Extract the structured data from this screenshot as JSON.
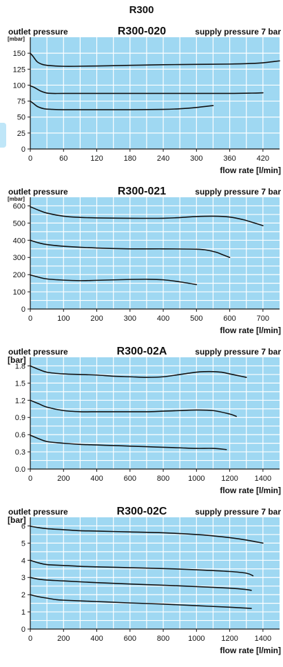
{
  "page": {
    "title": "R300"
  },
  "colors": {
    "plot_bg": "#9fd8f2",
    "grid": "#ffffff",
    "line": "#111111"
  },
  "chart_data": [
    {
      "type": "line",
      "title": "R300-020",
      "ylabel": "outlet pressure",
      "yunit": "[mbar]",
      "xlabel": "flow rate [l/min]",
      "note": "supply pressure 7 bar",
      "xlim": [
        0,
        450
      ],
      "ylim": [
        0,
        175
      ],
      "xticks": [
        0,
        60,
        120,
        180,
        240,
        300,
        360,
        420
      ],
      "yticks": [
        0,
        25,
        50,
        75,
        100,
        125,
        150
      ],
      "xgrid_step": 30,
      "ygrid_step": 25,
      "series": [
        {
          "x": [
            0,
            5,
            12,
            20,
            30,
            45,
            60,
            80,
            120,
            180,
            240,
            300,
            360,
            400,
            420,
            440,
            450
          ],
          "y": [
            150,
            145,
            137,
            133,
            131,
            130,
            129.5,
            129.5,
            130,
            131,
            132,
            132.5,
            133,
            134,
            135,
            137,
            138
          ]
        },
        {
          "x": [
            0,
            8,
            18,
            28,
            40,
            60,
            120,
            180,
            240,
            300,
            360,
            400,
            420
          ],
          "y": [
            99,
            96,
            91,
            88,
            87,
            87,
            87,
            87,
            87,
            87,
            87,
            87.5,
            88
          ]
        },
        {
          "x": [
            0,
            6,
            14,
            25,
            40,
            60,
            120,
            180,
            240,
            270,
            300,
            320,
            330
          ],
          "y": [
            75,
            71,
            66,
            63,
            62,
            61.5,
            61.5,
            61.5,
            62,
            63,
            65,
            67,
            68
          ]
        }
      ]
    },
    {
      "type": "line",
      "title": "R300-021",
      "ylabel": "outlet pressure",
      "yunit": "[mbar]",
      "xlabel": "flow rate [l/min]",
      "note": "supply pressure 7 bar",
      "xlim": [
        0,
        750
      ],
      "ylim": [
        0,
        650
      ],
      "xticks": [
        0,
        100,
        200,
        300,
        400,
        500,
        600,
        700
      ],
      "yticks": [
        0,
        100,
        200,
        300,
        400,
        500,
        600
      ],
      "xgrid_step": 50,
      "ygrid_step": 50,
      "series": [
        {
          "x": [
            0,
            25,
            50,
            100,
            150,
            200,
            300,
            400,
            450,
            500,
            550,
            600,
            640,
            670,
            700
          ],
          "y": [
            595,
            575,
            558,
            540,
            533,
            530,
            528,
            528,
            532,
            538,
            540,
            535,
            520,
            503,
            485
          ]
        },
        {
          "x": [
            0,
            25,
            50,
            100,
            200,
            300,
            400,
            500,
            530,
            560,
            580,
            600
          ],
          "y": [
            400,
            385,
            375,
            365,
            355,
            350,
            350,
            348,
            343,
            330,
            315,
            300
          ]
        },
        {
          "x": [
            0,
            25,
            50,
            100,
            150,
            200,
            300,
            350,
            400,
            450,
            500
          ],
          "y": [
            198,
            185,
            175,
            168,
            165,
            167,
            172,
            173,
            170,
            158,
            142
          ]
        }
      ]
    },
    {
      "type": "line",
      "title": "R300-02A",
      "ylabel": "outlet pressure",
      "yunit": "[bar]",
      "xlabel": "flow rate [l/min]",
      "note": "supply pressure 7 bar",
      "xlim": [
        0,
        1500
      ],
      "ylim": [
        0,
        1.95
      ],
      "xticks": [
        0,
        200,
        400,
        600,
        800,
        1000,
        1200,
        1400
      ],
      "yticks": [
        0.0,
        0.3,
        0.6,
        0.9,
        1.2,
        1.5,
        1.8
      ],
      "ytick_labels": [
        "0.0",
        "0.3",
        "0.6",
        "0.9",
        "1.2",
        "1.5",
        "1.8"
      ],
      "xgrid_step": 100,
      "ygrid_step": 0.15,
      "series": [
        {
          "x": [
            0,
            50,
            100,
            200,
            300,
            400,
            500,
            600,
            700,
            800,
            900,
            1000,
            1050,
            1100,
            1150,
            1200,
            1250,
            1300
          ],
          "y": [
            1.8,
            1.74,
            1.69,
            1.66,
            1.65,
            1.64,
            1.62,
            1.61,
            1.6,
            1.61,
            1.65,
            1.69,
            1.7,
            1.7,
            1.69,
            1.66,
            1.63,
            1.6
          ]
        },
        {
          "x": [
            0,
            50,
            100,
            200,
            300,
            400,
            500,
            600,
            700,
            800,
            900,
            1000,
            1100,
            1200,
            1240
          ],
          "y": [
            1.2,
            1.14,
            1.08,
            1.02,
            1.0,
            1.0,
            1.0,
            1.0,
            1.0,
            1.01,
            1.02,
            1.03,
            1.02,
            0.96,
            0.92
          ]
        },
        {
          "x": [
            0,
            50,
            100,
            200,
            300,
            400,
            500,
            600,
            700,
            800,
            900,
            1000,
            1100,
            1180
          ],
          "y": [
            0.59,
            0.53,
            0.48,
            0.45,
            0.43,
            0.42,
            0.41,
            0.4,
            0.39,
            0.38,
            0.37,
            0.36,
            0.36,
            0.34
          ]
        }
      ]
    },
    {
      "type": "line",
      "title": "R300-02C",
      "ylabel": "outlet pressure",
      "yunit": "[bar]",
      "xlabel": "flow rate [l/min]",
      "note": "supply pressure 7 bar",
      "xlim": [
        0,
        1500
      ],
      "ylim": [
        0,
        6.5
      ],
      "xticks": [
        0,
        200,
        400,
        600,
        800,
        1000,
        1200,
        1400
      ],
      "yticks": [
        0,
        1,
        2,
        3,
        4,
        5,
        6
      ],
      "xgrid_step": 100,
      "ygrid_step": 0.5,
      "series": [
        {
          "x": [
            0,
            50,
            100,
            200,
            300,
            400,
            600,
            800,
            1000,
            1100,
            1200,
            1300,
            1400
          ],
          "y": [
            5.98,
            5.9,
            5.84,
            5.78,
            5.72,
            5.7,
            5.65,
            5.6,
            5.5,
            5.42,
            5.32,
            5.18,
            5.0
          ]
        },
        {
          "x": [
            0,
            50,
            100,
            200,
            300,
            400,
            600,
            800,
            1000,
            1200,
            1300,
            1340
          ],
          "y": [
            4.0,
            3.85,
            3.75,
            3.7,
            3.65,
            3.62,
            3.57,
            3.52,
            3.45,
            3.35,
            3.25,
            3.1
          ]
        },
        {
          "x": [
            0,
            50,
            100,
            200,
            400,
            600,
            800,
            1000,
            1200,
            1300,
            1330
          ],
          "y": [
            3.0,
            2.9,
            2.85,
            2.8,
            2.7,
            2.62,
            2.55,
            2.47,
            2.38,
            2.3,
            2.25
          ]
        },
        {
          "x": [
            0,
            50,
            100,
            150,
            200,
            400,
            600,
            800,
            1000,
            1200,
            1330
          ],
          "y": [
            2.0,
            1.88,
            1.8,
            1.72,
            1.68,
            1.6,
            1.52,
            1.45,
            1.36,
            1.27,
            1.2
          ]
        }
      ]
    }
  ]
}
